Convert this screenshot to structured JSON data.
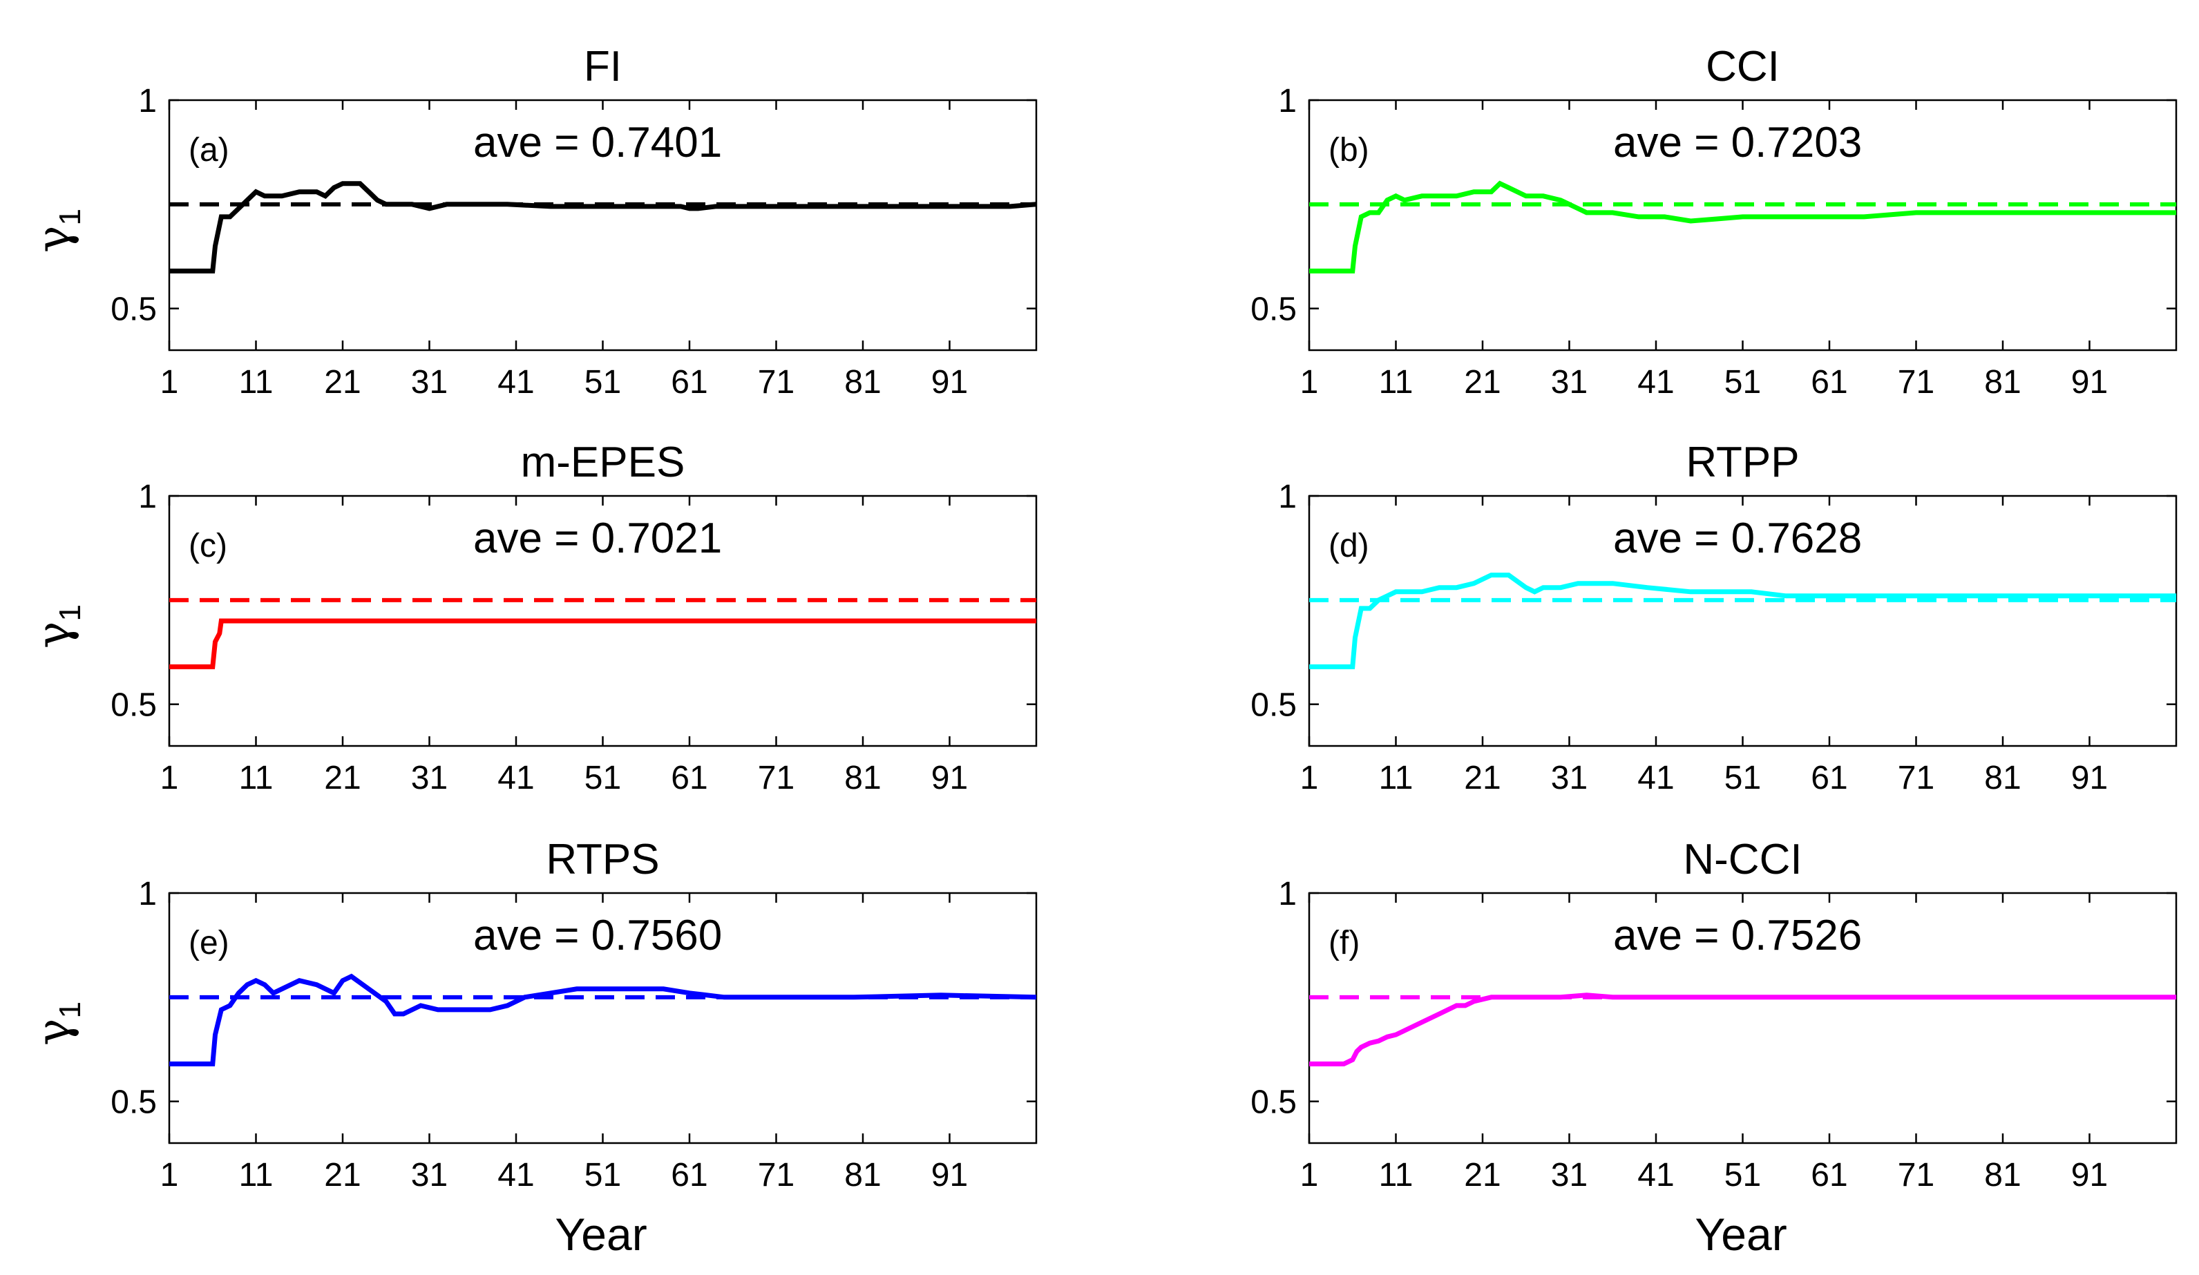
{
  "figure": {
    "xlabel": "Year",
    "ylabel": "γ",
    "ylabel_sub": "1"
  },
  "chart_data": [
    {
      "type": "line",
      "panel": "(a)",
      "title": "FI",
      "annotation": "ave = 0.7401",
      "color": "#000000",
      "xlabel": "Year",
      "ylabel": "γ1",
      "xlim": [
        1,
        101
      ],
      "ylim": [
        0.4,
        1.0
      ],
      "xticks": [
        1,
        11,
        21,
        31,
        41,
        51,
        61,
        71,
        81,
        91
      ],
      "yticks": [
        0.5,
        1
      ],
      "ytick_labels": [
        "0.5",
        "1"
      ],
      "reference_value": 0.75,
      "series": [
        {
          "name": "FI",
          "x": [
            1,
            6,
            6.3,
            7,
            8,
            9,
            10,
            11,
            12,
            14,
            16,
            18,
            19,
            20,
            21,
            22,
            23,
            24,
            25,
            26,
            27,
            29,
            31,
            33,
            36,
            40,
            45,
            50,
            55,
            60,
            61,
            62,
            64,
            67,
            70,
            75,
            80,
            85,
            90,
            94,
            96,
            98,
            101
          ],
          "y": [
            0.59,
            0.59,
            0.65,
            0.72,
            0.72,
            0.74,
            0.76,
            0.78,
            0.77,
            0.77,
            0.78,
            0.78,
            0.77,
            0.79,
            0.8,
            0.8,
            0.8,
            0.78,
            0.76,
            0.75,
            0.75,
            0.75,
            0.74,
            0.75,
            0.75,
            0.75,
            0.745,
            0.745,
            0.745,
            0.745,
            0.74,
            0.74,
            0.745,
            0.745,
            0.745,
            0.745,
            0.745,
            0.745,
            0.745,
            0.745,
            0.745,
            0.745,
            0.75
          ]
        }
      ]
    },
    {
      "type": "line",
      "panel": "(b)",
      "title": "CCI",
      "annotation": "ave = 0.7203",
      "color": "#00ff00",
      "xlabel": "Year",
      "ylabel": "γ1",
      "xlim": [
        1,
        101
      ],
      "ylim": [
        0.4,
        1.0
      ],
      "xticks": [
        1,
        11,
        21,
        31,
        41,
        51,
        61,
        71,
        81,
        91
      ],
      "yticks": [
        0.5,
        1
      ],
      "ytick_labels": [
        "0.5",
        "1"
      ],
      "reference_value": 0.75,
      "series": [
        {
          "name": "CCI",
          "x": [
            1,
            6,
            6.3,
            7,
            8,
            9,
            10,
            11,
            12,
            14,
            16,
            18,
            20,
            22,
            23,
            24,
            26,
            28,
            30,
            31,
            33,
            36,
            39,
            42,
            45,
            48,
            51,
            55,
            60,
            65,
            71,
            80,
            90,
            101
          ],
          "y": [
            0.59,
            0.59,
            0.65,
            0.72,
            0.73,
            0.73,
            0.76,
            0.77,
            0.76,
            0.77,
            0.77,
            0.77,
            0.78,
            0.78,
            0.8,
            0.79,
            0.77,
            0.77,
            0.76,
            0.75,
            0.73,
            0.73,
            0.72,
            0.72,
            0.71,
            0.715,
            0.72,
            0.72,
            0.72,
            0.72,
            0.73,
            0.73,
            0.73,
            0.73
          ]
        }
      ]
    },
    {
      "type": "line",
      "panel": "(c)",
      "title": "m-EPES",
      "annotation": "ave = 0.7021",
      "color": "#ff0000",
      "xlabel": "Year",
      "ylabel": "γ1",
      "xlim": [
        1,
        101
      ],
      "ylim": [
        0.4,
        1.0
      ],
      "xticks": [
        1,
        11,
        21,
        31,
        41,
        51,
        61,
        71,
        81,
        91
      ],
      "yticks": [
        0.5,
        1
      ],
      "ytick_labels": [
        "0.5",
        "1"
      ],
      "reference_value": 0.75,
      "series": [
        {
          "name": "m-EPES",
          "x": [
            1,
            6,
            6.3,
            6.8,
            7,
            101
          ],
          "y": [
            0.59,
            0.59,
            0.65,
            0.67,
            0.7,
            0.7
          ]
        }
      ]
    },
    {
      "type": "line",
      "panel": "(d)",
      "title": "RTPP",
      "annotation": "ave = 0.7628",
      "color": "#00ffff",
      "xlabel": "Year",
      "ylabel": "γ1",
      "xlim": [
        1,
        101
      ],
      "ylim": [
        0.4,
        1.0
      ],
      "xticks": [
        1,
        11,
        21,
        31,
        41,
        51,
        61,
        71,
        81,
        91
      ],
      "yticks": [
        0.5,
        1
      ],
      "ytick_labels": [
        "0.5",
        "1"
      ],
      "reference_value": 0.75,
      "series": [
        {
          "name": "RTPP",
          "x": [
            1,
            6,
            6.3,
            7,
            8,
            9,
            10,
            11,
            12,
            14,
            16,
            18,
            20,
            22,
            24,
            26,
            27,
            28,
            30,
            32,
            34,
            36,
            40,
            45,
            50,
            52,
            56,
            60,
            70,
            80,
            90,
            101
          ],
          "y": [
            0.59,
            0.59,
            0.66,
            0.73,
            0.73,
            0.75,
            0.76,
            0.77,
            0.77,
            0.77,
            0.78,
            0.78,
            0.79,
            0.81,
            0.81,
            0.78,
            0.77,
            0.78,
            0.78,
            0.79,
            0.79,
            0.79,
            0.78,
            0.77,
            0.77,
            0.77,
            0.76,
            0.76,
            0.76,
            0.76,
            0.76,
            0.76
          ]
        }
      ]
    },
    {
      "type": "line",
      "panel": "(e)",
      "title": "RTPS",
      "annotation": "ave = 0.7560",
      "color": "#0000ff",
      "xlabel": "Year",
      "ylabel": "γ1",
      "xlim": [
        1,
        101
      ],
      "ylim": [
        0.4,
        1.0
      ],
      "xticks": [
        1,
        11,
        21,
        31,
        41,
        51,
        61,
        71,
        81,
        91
      ],
      "yticks": [
        0.5,
        1
      ],
      "ytick_labels": [
        "0.5",
        "1"
      ],
      "reference_value": 0.75,
      "series": [
        {
          "name": "RTPS",
          "x": [
            1,
            6,
            6.3,
            7,
            8,
            9,
            10,
            11,
            12,
            13,
            14,
            16,
            18,
            20,
            21,
            22,
            24,
            26,
            27,
            28,
            30,
            32,
            34,
            36,
            38,
            40,
            42,
            45,
            48,
            51,
            55,
            58,
            61,
            65,
            70,
            80,
            90,
            101
          ],
          "y": [
            0.59,
            0.59,
            0.66,
            0.72,
            0.73,
            0.76,
            0.78,
            0.79,
            0.78,
            0.76,
            0.77,
            0.79,
            0.78,
            0.76,
            0.79,
            0.8,
            0.77,
            0.74,
            0.71,
            0.71,
            0.73,
            0.72,
            0.72,
            0.72,
            0.72,
            0.73,
            0.75,
            0.76,
            0.77,
            0.77,
            0.77,
            0.77,
            0.76,
            0.75,
            0.75,
            0.75,
            0.755,
            0.75
          ]
        }
      ]
    },
    {
      "type": "line",
      "panel": "(f)",
      "title": "N-CCI",
      "annotation": "ave = 0.7526",
      "color": "#ff00ff",
      "xlabel": "Year",
      "ylabel": "γ1",
      "xlim": [
        1,
        101
      ],
      "ylim": [
        0.4,
        1.0
      ],
      "xticks": [
        1,
        11,
        21,
        31,
        41,
        51,
        61,
        71,
        81,
        91
      ],
      "yticks": [
        0.5,
        1
      ],
      "ytick_labels": [
        "0.5",
        "1"
      ],
      "reference_value": 0.75,
      "series": [
        {
          "name": "N-CCI",
          "x": [
            1,
            5,
            6,
            6.5,
            7,
            8,
            9,
            10,
            11,
            12,
            14,
            16,
            18,
            19,
            20,
            21,
            22,
            24,
            26,
            28,
            30,
            33,
            36,
            40,
            50,
            60,
            70,
            80,
            90,
            101
          ],
          "y": [
            0.59,
            0.59,
            0.6,
            0.62,
            0.63,
            0.64,
            0.645,
            0.655,
            0.66,
            0.67,
            0.69,
            0.71,
            0.73,
            0.73,
            0.74,
            0.745,
            0.75,
            0.75,
            0.75,
            0.75,
            0.75,
            0.755,
            0.75,
            0.75,
            0.75,
            0.75,
            0.75,
            0.75,
            0.75,
            0.75
          ]
        }
      ]
    }
  ]
}
